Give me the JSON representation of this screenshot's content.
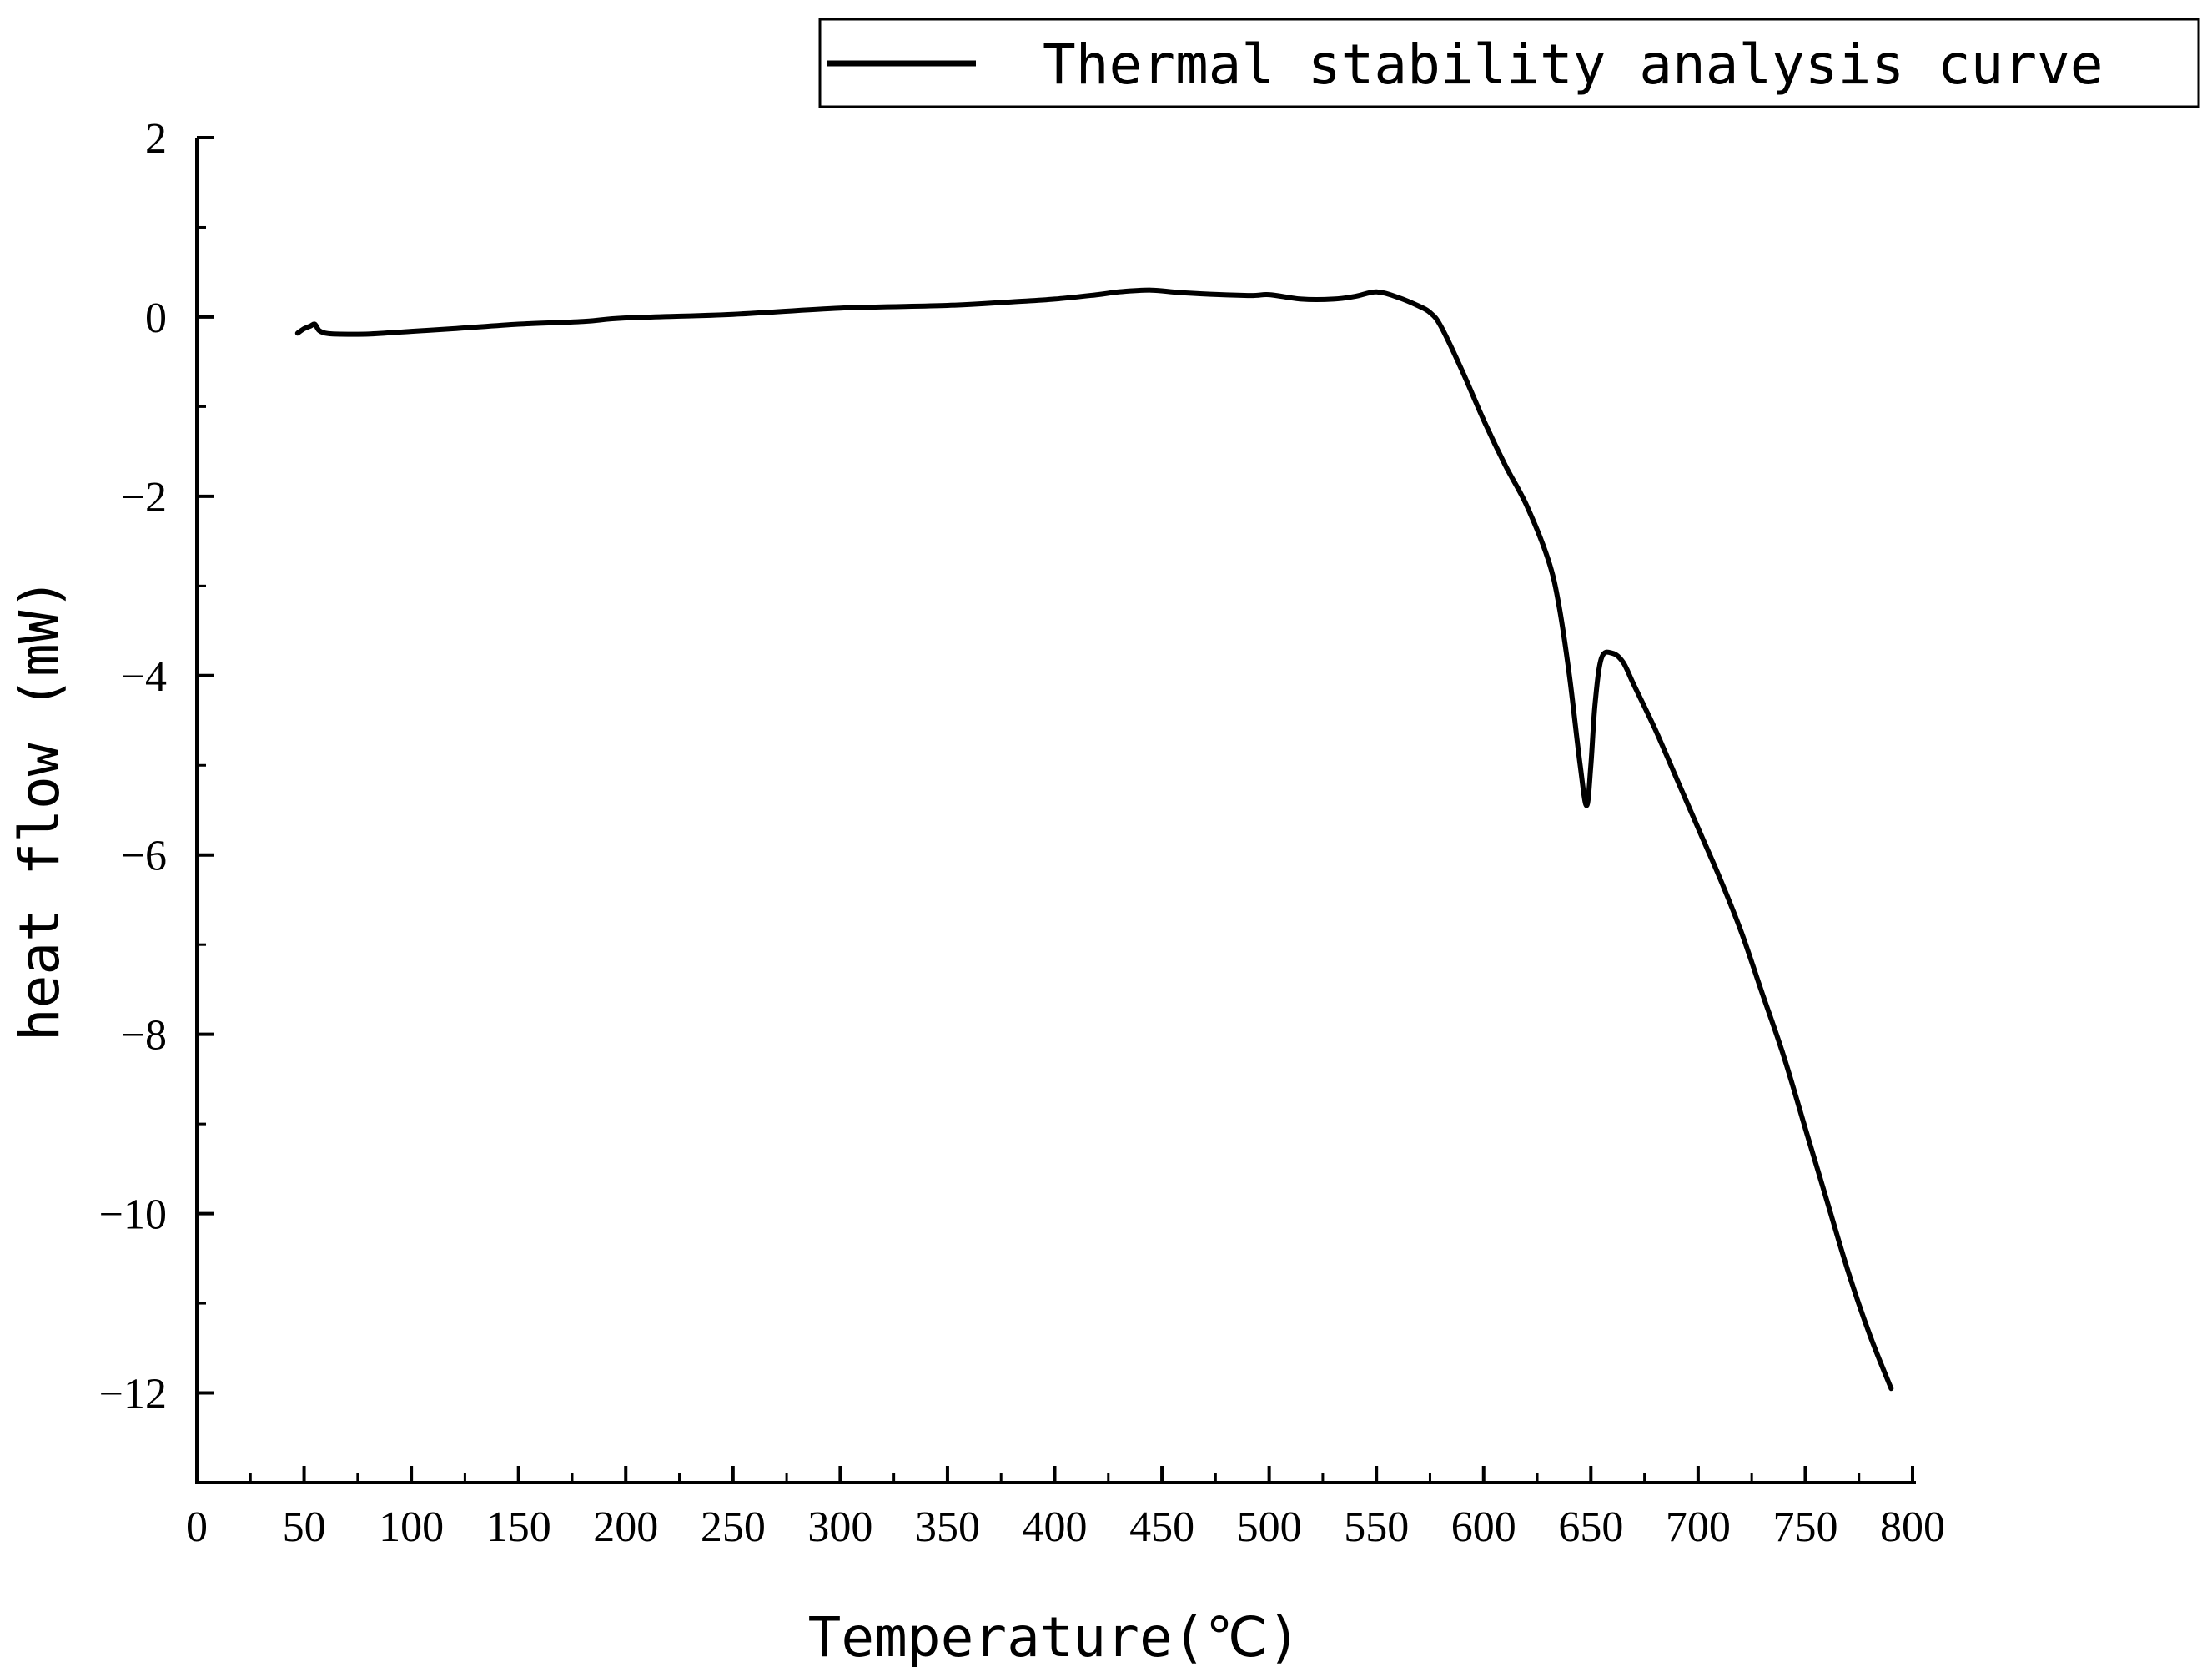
{
  "chart_data": {
    "type": "line",
    "title": "",
    "xlabel": "Temperature(℃)",
    "ylabel": "heat flow (mW)",
    "xlim": [
      0,
      800
    ],
    "ylim": [
      -13,
      2
    ],
    "x_ticks": [
      0,
      50,
      100,
      150,
      200,
      250,
      300,
      350,
      400,
      450,
      500,
      550,
      600,
      650,
      700,
      750,
      800
    ],
    "x_tick_labels": [
      "0",
      "50",
      "100",
      "150",
      "200",
      "250",
      "300",
      "350",
      "400",
      "450",
      "500",
      "550",
      "600",
      "650",
      "700",
      "750",
      "800"
    ],
    "y_ticks": [
      2,
      0,
      -2,
      -4,
      -6,
      -8,
      -10,
      -12
    ],
    "y_tick_labels": [
      "2",
      "0",
      "−2",
      "−4",
      "−6",
      "−8",
      "−10",
      "−12"
    ],
    "grid": false,
    "legend": {
      "position": "top-right"
    },
    "series": [
      {
        "name": "Thermal stability analysis curve",
        "color": "#000000",
        "x": [
          47,
          50,
          53,
          55,
          57,
          60,
          65,
          80,
          100,
          120,
          150,
          180,
          200,
          250,
          300,
          350,
          380,
          400,
          420,
          430,
          445,
          460,
          490,
          500,
          515,
          530,
          540,
          550,
          560,
          570,
          575,
          580,
          590,
          600,
          610,
          620,
          630,
          635,
          640,
          645,
          648,
          650,
          652,
          655,
          660,
          665,
          670,
          680,
          690,
          700,
          710,
          720,
          730,
          740,
          750,
          760,
          770,
          780,
          790
        ],
        "y": [
          -0.18,
          -0.13,
          -0.1,
          -0.08,
          -0.15,
          -0.18,
          -0.19,
          -0.19,
          -0.16,
          -0.13,
          -0.08,
          -0.05,
          -0.01,
          0.03,
          0.1,
          0.13,
          0.17,
          0.2,
          0.25,
          0.28,
          0.3,
          0.27,
          0.24,
          0.25,
          0.2,
          0.2,
          0.23,
          0.28,
          0.22,
          0.12,
          0.05,
          -0.1,
          -0.6,
          -1.15,
          -1.65,
          -2.1,
          -2.7,
          -3.2,
          -4.0,
          -5.0,
          -5.45,
          -5.0,
          -4.3,
          -3.8,
          -3.75,
          -3.85,
          -4.1,
          -4.6,
          -5.15,
          -5.7,
          -6.25,
          -6.85,
          -7.55,
          -8.25,
          -9.05,
          -9.85,
          -10.65,
          -11.35,
          -11.95
        ]
      }
    ]
  }
}
